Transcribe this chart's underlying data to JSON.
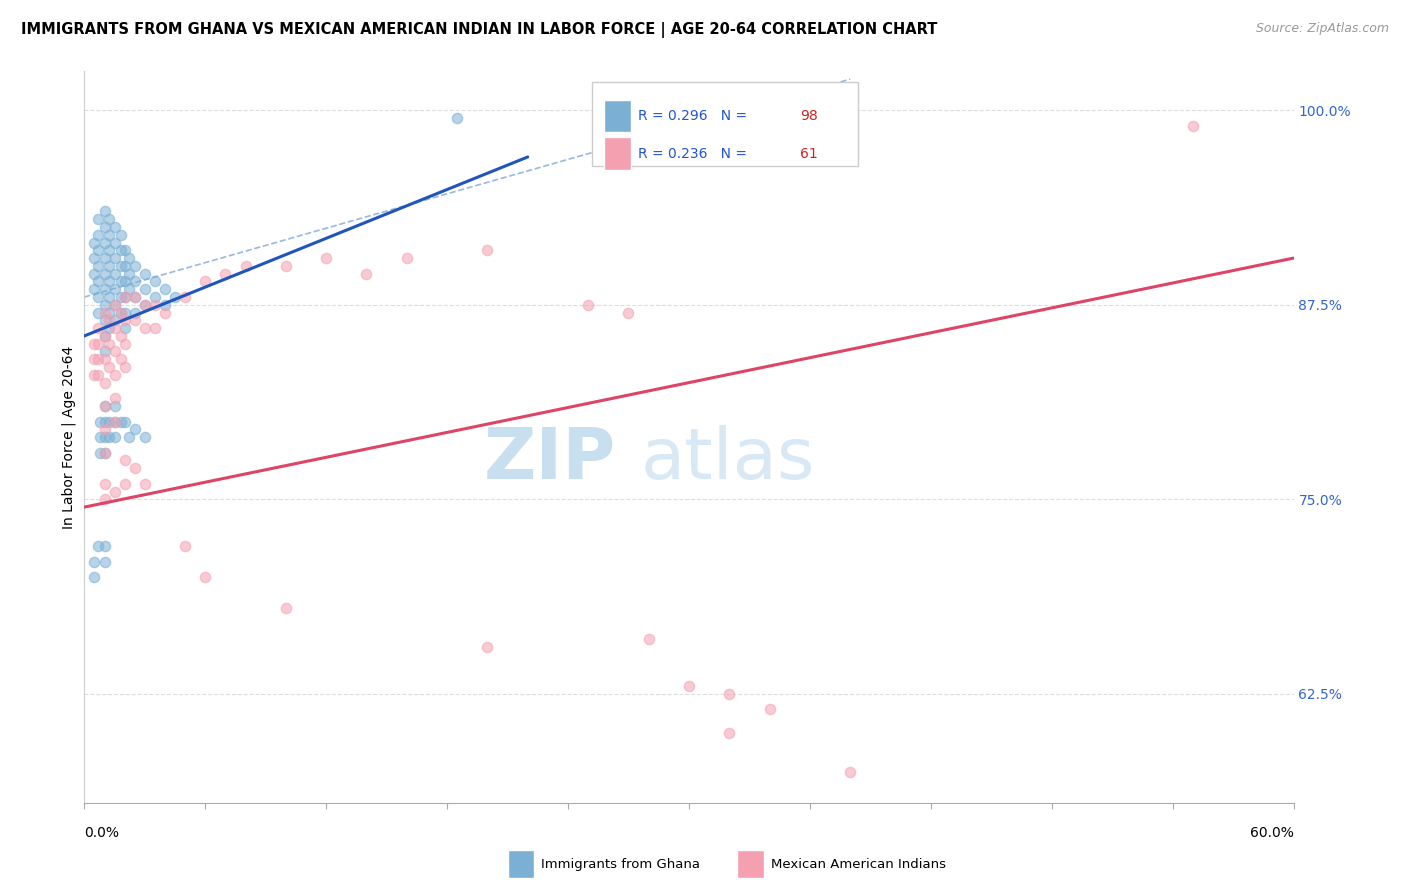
{
  "title": "IMMIGRANTS FROM GHANA VS MEXICAN AMERICAN INDIAN IN LABOR FORCE | AGE 20-64 CORRELATION CHART",
  "source": "Source: ZipAtlas.com",
  "ylabel": "In Labor Force | Age 20-64",
  "xmin": 0.0,
  "xmax": 0.6,
  "ymin": 0.555,
  "ymax": 1.025,
  "legend_label1": "Immigrants from Ghana",
  "legend_label2": "Mexican American Indians",
  "watermark_zip": "ZIP",
  "watermark_atlas": "atlas",
  "blue_color": "#7bafd4",
  "pink_color": "#f4a0b0",
  "blue_scatter": [
    [
      0.005,
      0.915
    ],
    [
      0.005,
      0.905
    ],
    [
      0.005,
      0.895
    ],
    [
      0.005,
      0.885
    ],
    [
      0.007,
      0.93
    ],
    [
      0.007,
      0.92
    ],
    [
      0.007,
      0.91
    ],
    [
      0.007,
      0.9
    ],
    [
      0.007,
      0.89
    ],
    [
      0.007,
      0.88
    ],
    [
      0.007,
      0.87
    ],
    [
      0.01,
      0.935
    ],
    [
      0.01,
      0.925
    ],
    [
      0.01,
      0.915
    ],
    [
      0.01,
      0.905
    ],
    [
      0.01,
      0.895
    ],
    [
      0.01,
      0.885
    ],
    [
      0.01,
      0.875
    ],
    [
      0.01,
      0.865
    ],
    [
      0.01,
      0.855
    ],
    [
      0.01,
      0.845
    ],
    [
      0.012,
      0.93
    ],
    [
      0.012,
      0.92
    ],
    [
      0.012,
      0.91
    ],
    [
      0.012,
      0.9
    ],
    [
      0.012,
      0.89
    ],
    [
      0.012,
      0.88
    ],
    [
      0.012,
      0.87
    ],
    [
      0.012,
      0.86
    ],
    [
      0.015,
      0.925
    ],
    [
      0.015,
      0.915
    ],
    [
      0.015,
      0.905
    ],
    [
      0.015,
      0.895
    ],
    [
      0.015,
      0.885
    ],
    [
      0.015,
      0.875
    ],
    [
      0.015,
      0.865
    ],
    [
      0.018,
      0.92
    ],
    [
      0.018,
      0.91
    ],
    [
      0.018,
      0.9
    ],
    [
      0.018,
      0.89
    ],
    [
      0.018,
      0.88
    ],
    [
      0.018,
      0.87
    ],
    [
      0.02,
      0.91
    ],
    [
      0.02,
      0.9
    ],
    [
      0.02,
      0.89
    ],
    [
      0.02,
      0.88
    ],
    [
      0.02,
      0.87
    ],
    [
      0.02,
      0.86
    ],
    [
      0.022,
      0.905
    ],
    [
      0.022,
      0.895
    ],
    [
      0.022,
      0.885
    ],
    [
      0.025,
      0.9
    ],
    [
      0.025,
      0.89
    ],
    [
      0.025,
      0.88
    ],
    [
      0.025,
      0.87
    ],
    [
      0.03,
      0.895
    ],
    [
      0.03,
      0.885
    ],
    [
      0.03,
      0.875
    ],
    [
      0.035,
      0.89
    ],
    [
      0.035,
      0.88
    ],
    [
      0.04,
      0.885
    ],
    [
      0.04,
      0.875
    ],
    [
      0.045,
      0.88
    ],
    [
      0.008,
      0.8
    ],
    [
      0.008,
      0.79
    ],
    [
      0.008,
      0.78
    ],
    [
      0.01,
      0.81
    ],
    [
      0.01,
      0.8
    ],
    [
      0.01,
      0.79
    ],
    [
      0.01,
      0.78
    ],
    [
      0.012,
      0.8
    ],
    [
      0.012,
      0.79
    ],
    [
      0.015,
      0.81
    ],
    [
      0.015,
      0.8
    ],
    [
      0.015,
      0.79
    ],
    [
      0.018,
      0.8
    ],
    [
      0.02,
      0.8
    ],
    [
      0.022,
      0.79
    ],
    [
      0.025,
      0.795
    ],
    [
      0.03,
      0.79
    ],
    [
      0.005,
      0.71
    ],
    [
      0.005,
      0.7
    ],
    [
      0.007,
      0.72
    ],
    [
      0.01,
      0.72
    ],
    [
      0.01,
      0.71
    ],
    [
      0.185,
      0.995
    ]
  ],
  "pink_scatter": [
    [
      0.005,
      0.85
    ],
    [
      0.005,
      0.84
    ],
    [
      0.005,
      0.83
    ],
    [
      0.007,
      0.86
    ],
    [
      0.007,
      0.85
    ],
    [
      0.007,
      0.84
    ],
    [
      0.007,
      0.83
    ],
    [
      0.01,
      0.87
    ],
    [
      0.01,
      0.855
    ],
    [
      0.01,
      0.84
    ],
    [
      0.01,
      0.825
    ],
    [
      0.01,
      0.81
    ],
    [
      0.01,
      0.795
    ],
    [
      0.01,
      0.78
    ],
    [
      0.012,
      0.865
    ],
    [
      0.012,
      0.85
    ],
    [
      0.012,
      0.835
    ],
    [
      0.015,
      0.875
    ],
    [
      0.015,
      0.86
    ],
    [
      0.015,
      0.845
    ],
    [
      0.015,
      0.83
    ],
    [
      0.015,
      0.815
    ],
    [
      0.015,
      0.8
    ],
    [
      0.018,
      0.87
    ],
    [
      0.018,
      0.855
    ],
    [
      0.018,
      0.84
    ],
    [
      0.02,
      0.88
    ],
    [
      0.02,
      0.865
    ],
    [
      0.02,
      0.85
    ],
    [
      0.02,
      0.835
    ],
    [
      0.025,
      0.88
    ],
    [
      0.025,
      0.865
    ],
    [
      0.03,
      0.875
    ],
    [
      0.03,
      0.86
    ],
    [
      0.035,
      0.875
    ],
    [
      0.035,
      0.86
    ],
    [
      0.04,
      0.87
    ],
    [
      0.05,
      0.88
    ],
    [
      0.06,
      0.89
    ],
    [
      0.07,
      0.895
    ],
    [
      0.08,
      0.9
    ],
    [
      0.1,
      0.9
    ],
    [
      0.12,
      0.905
    ],
    [
      0.14,
      0.895
    ],
    [
      0.16,
      0.905
    ],
    [
      0.2,
      0.91
    ],
    [
      0.25,
      0.875
    ],
    [
      0.27,
      0.87
    ],
    [
      0.01,
      0.76
    ],
    [
      0.01,
      0.75
    ],
    [
      0.015,
      0.755
    ],
    [
      0.02,
      0.775
    ],
    [
      0.02,
      0.76
    ],
    [
      0.025,
      0.77
    ],
    [
      0.03,
      0.76
    ],
    [
      0.05,
      0.72
    ],
    [
      0.06,
      0.7
    ],
    [
      0.55,
      0.99
    ],
    [
      0.1,
      0.68
    ],
    [
      0.2,
      0.655
    ],
    [
      0.28,
      0.66
    ],
    [
      0.3,
      0.63
    ],
    [
      0.32,
      0.625
    ],
    [
      0.32,
      0.6
    ],
    [
      0.34,
      0.615
    ],
    [
      0.38,
      0.575
    ]
  ],
  "blue_line_x": [
    0.0,
    0.22
  ],
  "blue_line_y": [
    0.855,
    0.97
  ],
  "pink_line_x": [
    0.0,
    0.6
  ],
  "pink_line_y": [
    0.745,
    0.905
  ],
  "diag_line_x": [
    0.0,
    0.38
  ],
  "diag_line_y": [
    0.88,
    1.02
  ],
  "title_fontsize": 10.5,
  "source_fontsize": 9,
  "axis_label_fontsize": 10,
  "tick_fontsize": 10,
  "watermark_fontsize_zip": 52,
  "watermark_fontsize_atlas": 52,
  "watermark_color_zip": "#c8dff0",
  "watermark_color_atlas": "#d8e8f5",
  "background_color": "#ffffff",
  "grid_color": "#dddddd",
  "ytick_positions": [
    0.625,
    0.75,
    0.875,
    1.0
  ],
  "ytick_labels": [
    "62.5%",
    "75.0%",
    "87.5%",
    "100.0%"
  ],
  "xtick_minor_count": 11
}
